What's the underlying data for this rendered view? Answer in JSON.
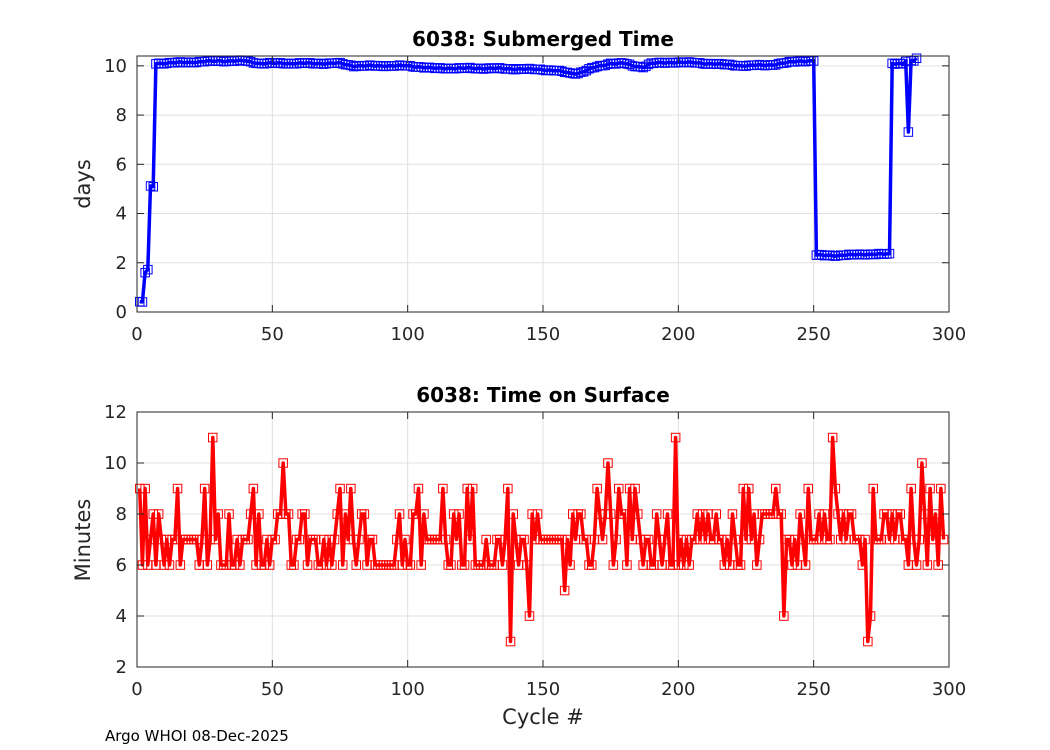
{
  "footer": "Argo WHOI 08-Dec-2025",
  "chart_data": [
    {
      "type": "line",
      "title": "6038: Submerged Time",
      "xlabel": "",
      "ylabel": "days",
      "xlim": [
        0,
        300
      ],
      "ylim": [
        0,
        10.4
      ],
      "xticks": [
        0,
        50,
        100,
        150,
        200,
        250,
        300
      ],
      "yticks": [
        0,
        2,
        4,
        6,
        8,
        10
      ],
      "grid": true,
      "line_color": "#0000ff",
      "marker_color": "#0000ff",
      "marker": "square",
      "keyframes": [
        [
          1,
          0.4
        ],
        [
          2,
          0.4
        ],
        [
          3,
          1.6
        ],
        [
          4,
          1.7
        ],
        [
          5,
          5.1
        ],
        [
          6,
          5.1
        ],
        [
          7,
          10.1
        ],
        [
          8,
          10.1
        ],
        [
          20,
          10.15
        ],
        [
          30,
          10.2
        ],
        [
          40,
          10.2
        ],
        [
          45,
          10.1
        ],
        [
          60,
          10.1
        ],
        [
          75,
          10.1
        ],
        [
          80,
          10.0
        ],
        [
          100,
          10.0
        ],
        [
          110,
          9.9
        ],
        [
          130,
          9.9
        ],
        [
          150,
          9.85
        ],
        [
          155,
          9.8
        ],
        [
          160,
          9.7
        ],
        [
          163,
          9.7
        ],
        [
          168,
          9.9
        ],
        [
          175,
          10.1
        ],
        [
          180,
          10.1
        ],
        [
          183,
          10.0
        ],
        [
          187,
          9.95
        ],
        [
          190,
          10.1
        ],
        [
          200,
          10.15
        ],
        [
          210,
          10.1
        ],
        [
          225,
          10.0
        ],
        [
          235,
          10.05
        ],
        [
          245,
          10.2
        ],
        [
          249,
          10.2
        ],
        [
          250,
          10.2
        ],
        [
          251,
          2.3
        ],
        [
          260,
          2.3
        ],
        [
          270,
          2.35
        ],
        [
          277,
          2.35
        ],
        [
          278,
          2.35
        ],
        [
          279,
          10.1
        ],
        [
          283,
          10.1
        ],
        [
          284,
          10.2
        ],
        [
          285,
          7.3
        ],
        [
          286,
          10.2
        ],
        [
          287,
          10.2
        ],
        [
          288,
          10.3
        ]
      ]
    },
    {
      "type": "line",
      "title": "6038: Time on Surface",
      "xlabel": "Cycle #",
      "ylabel": "Minutes",
      "xlim": [
        0,
        300
      ],
      "ylim": [
        2,
        12
      ],
      "xticks": [
        0,
        50,
        100,
        150,
        200,
        250,
        300
      ],
      "yticks": [
        2,
        4,
        6,
        8,
        10,
        12
      ],
      "grid": true,
      "line_color": "#ff0000",
      "marker_color": "#ff0000",
      "marker": "square",
      "x_start": 1,
      "values": [
        9,
        6,
        9,
        6,
        7,
        8,
        6,
        8,
        7,
        6,
        7,
        6,
        7,
        7,
        9,
        6,
        7,
        7,
        7,
        7,
        7,
        7,
        6,
        7,
        9,
        6,
        7,
        11,
        7,
        8,
        6,
        6,
        6,
        8,
        6,
        6,
        7,
        6,
        7,
        7,
        7,
        8,
        9,
        6,
        8,
        6,
        6,
        7,
        6,
        7,
        7,
        8,
        8,
        10,
        8,
        8,
        6,
        6,
        7,
        7,
        8,
        8,
        6,
        7,
        7,
        7,
        6,
        6,
        7,
        6,
        7,
        6,
        7,
        8,
        9,
        6,
        8,
        7,
        9,
        7,
        6,
        7,
        8,
        8,
        6,
        7,
        7,
        6,
        6,
        6,
        6,
        6,
        6,
        6,
        6,
        7,
        8,
        6,
        7,
        6,
        6,
        8,
        8,
        9,
        6,
        8,
        7,
        7,
        7,
        7,
        7,
        7,
        9,
        7,
        6,
        6,
        8,
        7,
        8,
        6,
        6,
        9,
        7,
        9,
        6,
        6,
        6,
        6,
        7,
        6,
        6,
        6,
        7,
        7,
        6,
        7,
        9,
        3,
        8,
        7,
        6,
        7,
        7,
        6,
        4,
        8,
        7,
        8,
        7,
        7,
        7,
        7,
        7,
        7,
        7,
        7,
        7,
        5,
        7,
        6,
        8,
        7,
        8,
        8,
        7,
        7,
        6,
        6,
        7,
        9,
        8,
        7,
        8,
        10,
        8,
        6,
        7,
        9,
        8,
        8,
        6,
        9,
        7,
        9,
        8,
        7,
        6,
        7,
        7,
        6,
        6,
        8,
        7,
        6,
        7,
        8,
        6,
        6,
        11,
        6,
        7,
        6,
        7,
        6,
        7,
        7,
        8,
        7,
        8,
        7,
        8,
        7,
        7,
        8,
        7,
        7,
        6,
        7,
        6,
        8,
        7,
        6,
        6,
        9,
        7,
        9,
        7,
        8,
        6,
        7,
        8,
        8,
        8,
        8,
        8,
        9,
        8,
        8,
        4,
        7,
        7,
        6,
        7,
        6,
        8,
        7,
        6,
        9,
        7,
        7,
        7,
        8,
        7,
        8,
        7,
        7,
        11,
        9,
        8,
        7,
        8,
        7,
        8,
        8,
        7,
        7,
        7,
        6,
        7,
        3,
        4,
        9,
        7,
        7,
        7,
        8,
        8,
        7,
        8,
        7,
        8,
        8,
        7,
        7,
        6,
        9,
        7,
        6,
        7,
        10,
        8,
        6,
        9,
        7,
        8,
        6,
        9,
        7
      ]
    }
  ]
}
